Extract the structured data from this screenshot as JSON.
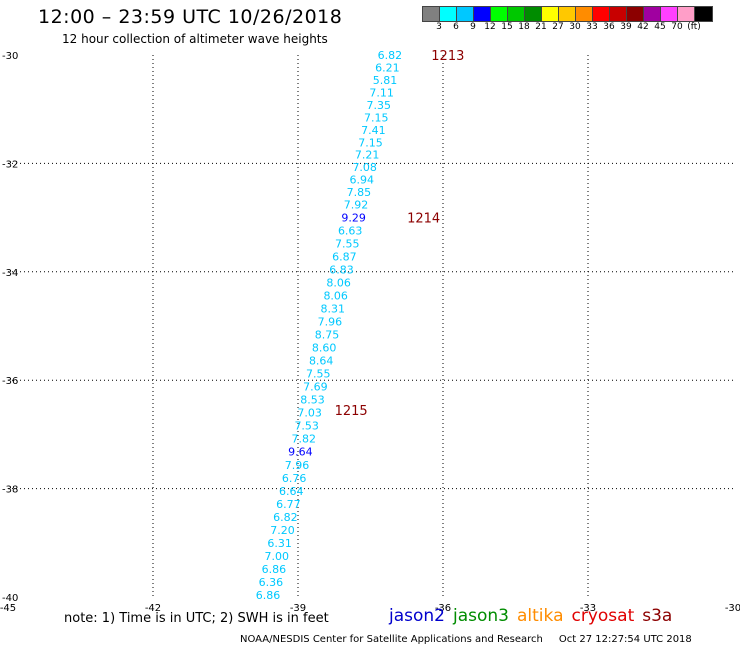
{
  "header": {
    "title": "12:00 – 23:59 UTC 10/26/2018",
    "subtitle": "12 hour collection of altimeter wave heights"
  },
  "legend": {
    "colors": [
      "#808080",
      "#00ffff",
      "#00c8ff",
      "#0000ff",
      "#00ff00",
      "#00c800",
      "#008c00",
      "#ffff00",
      "#ffc800",
      "#ff8c00",
      "#ff0000",
      "#c80000",
      "#8c0000",
      "#a000a0",
      "#ff40ff",
      "#ff9ec8",
      "#000000"
    ],
    "labels": [
      "3",
      "6",
      "9",
      "12",
      "15",
      "18",
      "21",
      "27",
      "30",
      "33",
      "36",
      "39",
      "42",
      "45",
      "70",
      "(ft)"
    ]
  },
  "chart_data": {
    "type": "scatter",
    "xlim": [
      -45,
      -30
    ],
    "ylim": [
      -40,
      -30
    ],
    "x_ticks": [
      -45,
      -42,
      -39,
      -36,
      -33,
      -30
    ],
    "y_ticks": [
      -30,
      -32,
      -34,
      -36,
      -38,
      -40
    ],
    "x_tick_labels": [
      "-45",
      "-42",
      "-39",
      "-36",
      "-33",
      "-30"
    ],
    "y_tick_labels": [
      "-30",
      "-32",
      "-34",
      "-36",
      "-38",
      "-40"
    ],
    "grid": true,
    "points": [
      {
        "x": -37.1,
        "y": -30.0,
        "value": "6.82",
        "color": "#00c8ff"
      },
      {
        "x": -37.15,
        "y": -30.23,
        "value": "6.21",
        "color": "#00c8ff"
      },
      {
        "x": -37.2,
        "y": -30.46,
        "value": "5.81",
        "color": "#00c8ff"
      },
      {
        "x": -37.27,
        "y": -30.69,
        "value": "7.11",
        "color": "#00c8ff"
      },
      {
        "x": -37.33,
        "y": -30.92,
        "value": "7.35",
        "color": "#00c8ff"
      },
      {
        "x": -37.38,
        "y": -31.15,
        "value": "7.15",
        "color": "#00c8ff"
      },
      {
        "x": -37.44,
        "y": -31.38,
        "value": "7.41",
        "color": "#00c8ff"
      },
      {
        "x": -37.5,
        "y": -31.61,
        "value": "7.15",
        "color": "#00c8ff"
      },
      {
        "x": -37.57,
        "y": -31.84,
        "value": "7.21",
        "color": "#00c8ff"
      },
      {
        "x": -37.62,
        "y": -32.07,
        "value": "7.08",
        "color": "#00c8ff"
      },
      {
        "x": -37.68,
        "y": -32.3,
        "value": "6.94",
        "color": "#00c8ff"
      },
      {
        "x": -37.74,
        "y": -32.53,
        "value": "7.85",
        "color": "#00c8ff"
      },
      {
        "x": -37.8,
        "y": -32.76,
        "value": "7.92",
        "color": "#00c8ff"
      },
      {
        "x": -37.85,
        "y": -33.0,
        "value": "9.29",
        "color": "#0000ff"
      },
      {
        "x": -37.92,
        "y": -33.24,
        "value": "6.63",
        "color": "#00c8ff"
      },
      {
        "x": -37.98,
        "y": -33.48,
        "value": "7.55",
        "color": "#00c8ff"
      },
      {
        "x": -38.04,
        "y": -33.72,
        "value": "6.87",
        "color": "#00c8ff"
      },
      {
        "x": -38.1,
        "y": -33.96,
        "value": "6.83",
        "color": "#00c8ff"
      },
      {
        "x": -38.16,
        "y": -34.2,
        "value": "8.06",
        "color": "#00c8ff"
      },
      {
        "x": -38.22,
        "y": -34.44,
        "value": "8.06",
        "color": "#00c8ff"
      },
      {
        "x": -38.28,
        "y": -34.68,
        "value": "8.31",
        "color": "#00c8ff"
      },
      {
        "x": -38.34,
        "y": -34.92,
        "value": "7.96",
        "color": "#00c8ff"
      },
      {
        "x": -38.4,
        "y": -35.16,
        "value": "8.75",
        "color": "#00c8ff"
      },
      {
        "x": -38.46,
        "y": -35.4,
        "value": "8.60",
        "color": "#00c8ff"
      },
      {
        "x": -38.52,
        "y": -35.64,
        "value": "8.64",
        "color": "#00c8ff"
      },
      {
        "x": -38.58,
        "y": -35.88,
        "value": "7.55",
        "color": "#00c8ff"
      },
      {
        "x": -38.64,
        "y": -36.12,
        "value": "7.69",
        "color": "#00c8ff"
      },
      {
        "x": -38.7,
        "y": -36.36,
        "value": "8.53",
        "color": "#00c8ff"
      },
      {
        "x": -38.76,
        "y": -36.6,
        "value": "7.03",
        "color": "#00c8ff"
      },
      {
        "x": -38.82,
        "y": -36.84,
        "value": "7.53",
        "color": "#00c8ff"
      },
      {
        "x": -38.88,
        "y": -37.08,
        "value": "7.82",
        "color": "#00c8ff"
      },
      {
        "x": -38.95,
        "y": -37.32,
        "value": "9.64",
        "color": "#0000ff"
      },
      {
        "x": -39.02,
        "y": -37.56,
        "value": "7.96",
        "color": "#00c8ff"
      },
      {
        "x": -39.08,
        "y": -37.8,
        "value": "6.76",
        "color": "#00c8ff"
      },
      {
        "x": -39.14,
        "y": -38.04,
        "value": "6.64",
        "color": "#00c8ff"
      },
      {
        "x": -39.2,
        "y": -38.28,
        "value": "6.77",
        "color": "#00c8ff"
      },
      {
        "x": -39.26,
        "y": -38.52,
        "value": "6.82",
        "color": "#00c8ff"
      },
      {
        "x": -39.32,
        "y": -38.76,
        "value": "7.20",
        "color": "#00c8ff"
      },
      {
        "x": -39.38,
        "y": -39.0,
        "value": "6.31",
        "color": "#00c8ff"
      },
      {
        "x": -39.44,
        "y": -39.24,
        "value": "7.00",
        "color": "#00c8ff"
      },
      {
        "x": -39.5,
        "y": -39.48,
        "value": "6.86",
        "color": "#00c8ff"
      },
      {
        "x": -39.56,
        "y": -39.72,
        "value": "6.36",
        "color": "#00c8ff"
      },
      {
        "x": -39.62,
        "y": -39.96,
        "value": "6.86",
        "color": "#00c8ff"
      }
    ],
    "time_labels": [
      {
        "x": -35.9,
        "y": -30.0,
        "label": "1213",
        "color": "#8c0000"
      },
      {
        "x": -36.4,
        "y": -33.0,
        "label": "1214",
        "color": "#8c0000"
      },
      {
        "x": -37.9,
        "y": -36.55,
        "label": "1215",
        "color": "#8c0000"
      }
    ]
  },
  "footer": {
    "note": "note:  1) Time is in UTC;  2) SWH is in feet",
    "satellites": [
      {
        "name": "jason2",
        "color": "#0000cc"
      },
      {
        "name": "jason3",
        "color": "#008c00"
      },
      {
        "name": "altika",
        "color": "#ff8c00"
      },
      {
        "name": "cryosat",
        "color": "#e00000"
      },
      {
        "name": "s3a",
        "color": "#8c0000"
      }
    ],
    "credit": "NOAA/NESDIS Center for Satellite Applications and Research",
    "timestamp": "Oct 27 12:27:54 UTC 2018"
  }
}
